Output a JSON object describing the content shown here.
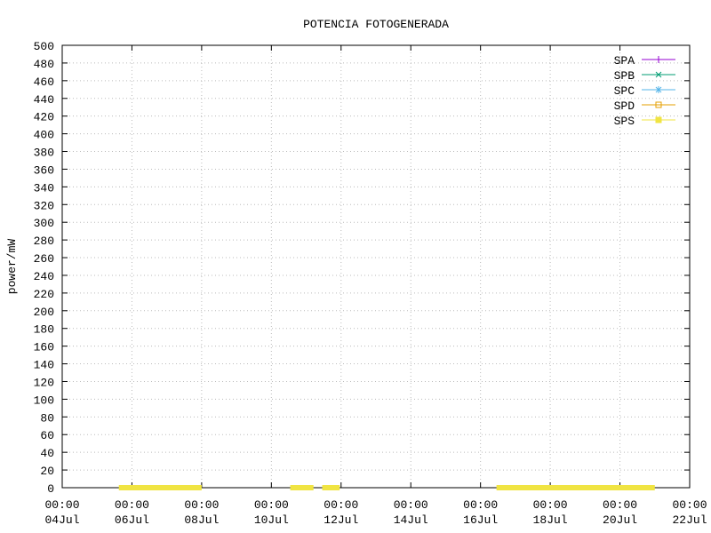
{
  "chart_data": {
    "type": "line",
    "title": "POTENCIA FOTOGENERADA",
    "y_label": "power/mW",
    "xlim": [
      "04Jul 00:00",
      "22Jul 00:00"
    ],
    "xticks": [
      {
        "value": "04Jul 00:00",
        "label": "00:00\n04Jul"
      },
      {
        "value": "06Jul 00:00",
        "label": "00:00\n06Jul"
      },
      {
        "value": "08Jul 00:00",
        "label": "00:00\n08Jul"
      },
      {
        "value": "10Jul 00:00",
        "label": "00:00\n10Jul"
      },
      {
        "value": "12Jul 00:00",
        "label": "00:00\n12Jul"
      },
      {
        "value": "14Jul 00:00",
        "label": "00:00\n14Jul"
      },
      {
        "value": "16Jul 00:00",
        "label": "00:00\n16Jul"
      },
      {
        "value": "18Jul 00:00",
        "label": "00:00\n18Jul"
      },
      {
        "value": "20Jul 00:00",
        "label": "00:00\n20Jul"
      },
      {
        "value": "22Jul 00:00",
        "label": "00:00\n22Jul"
      }
    ],
    "ylim": [
      0,
      500
    ],
    "yticks": [
      0,
      20,
      40,
      60,
      80,
      100,
      120,
      140,
      160,
      180,
      200,
      220,
      240,
      260,
      280,
      300,
      320,
      340,
      360,
      380,
      400,
      420,
      440,
      460,
      480,
      500
    ],
    "grid": true,
    "legend": "top-right",
    "series": [
      {
        "name": "SPA",
        "color": "#9400d3",
        "marker": "plus",
        "x": [],
        "values": []
      },
      {
        "name": "SPB",
        "color": "#009e73",
        "marker": "cross",
        "x": [],
        "values": []
      },
      {
        "name": "SPC",
        "color": "#56b4e9",
        "marker": "star",
        "x": [],
        "values": []
      },
      {
        "name": "SPD",
        "color": "#e69f00",
        "marker": "open-square",
        "x": [],
        "values": []
      },
      {
        "name": "SPS",
        "color": "#f0e442",
        "marker": "filled-square",
        "x": [
          "05Jul 15:00",
          "08Jul 00:00",
          null,
          "10Jul 13:00",
          "11Jul 05:00",
          null,
          "11Jul 11:00",
          "11Jul 23:00",
          null,
          "16Jul 11:00",
          "21Jul 00:00"
        ],
        "values": [
          0,
          0,
          null,
          0,
          0,
          null,
          0,
          0,
          null,
          0,
          0
        ]
      }
    ]
  }
}
